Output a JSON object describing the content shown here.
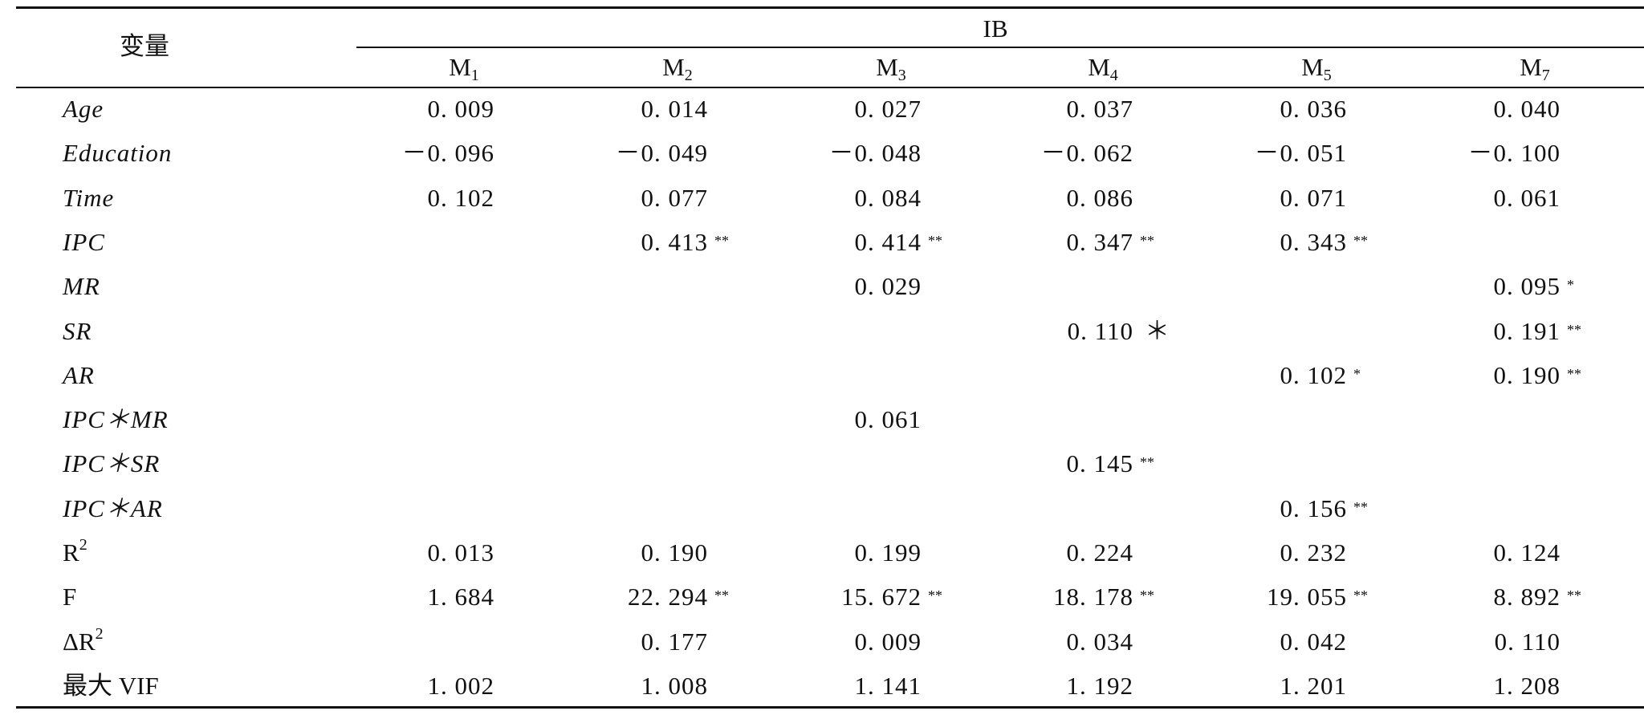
{
  "table": {
    "stub_header": "变量",
    "group_header": "IB",
    "columns": [
      {
        "base": "M",
        "sub": "1"
      },
      {
        "base": "M",
        "sub": "2"
      },
      {
        "base": "M",
        "sub": "3"
      },
      {
        "base": "M",
        "sub": "4"
      },
      {
        "base": "M",
        "sub": "5"
      },
      {
        "base": "M",
        "sub": "7"
      }
    ],
    "rows": [
      {
        "label": "Age",
        "italic": true,
        "cells": [
          {
            "v": "0. 009"
          },
          {
            "v": "0. 014"
          },
          {
            "v": "0. 027"
          },
          {
            "v": "0. 037"
          },
          {
            "v": "0. 036"
          },
          {
            "v": "0. 040"
          }
        ]
      },
      {
        "label": "Education",
        "italic": true,
        "cells": [
          {
            "v": "－0. 096"
          },
          {
            "v": "－0. 049"
          },
          {
            "v": "－0. 048"
          },
          {
            "v": "－0. 062"
          },
          {
            "v": "－0. 051"
          },
          {
            "v": "－0. 100"
          }
        ]
      },
      {
        "label": "Time",
        "italic": true,
        "cells": [
          {
            "v": "0. 102"
          },
          {
            "v": "0. 077"
          },
          {
            "v": "0. 084"
          },
          {
            "v": "0. 086"
          },
          {
            "v": "0. 071"
          },
          {
            "v": "0. 061"
          }
        ]
      },
      {
        "label": "IPC",
        "italic": true,
        "cells": [
          {
            "v": ""
          },
          {
            "v": "0. 413",
            "sig": "**"
          },
          {
            "v": "0. 414",
            "sig": "**"
          },
          {
            "v": "0. 347",
            "sig": "**"
          },
          {
            "v": "0. 343",
            "sig": "**"
          },
          {
            "v": ""
          }
        ]
      },
      {
        "label": "MR",
        "italic": true,
        "cells": [
          {
            "v": ""
          },
          {
            "v": ""
          },
          {
            "v": "0. 029"
          },
          {
            "v": ""
          },
          {
            "v": ""
          },
          {
            "v": "0. 095",
            "sig": "*"
          }
        ]
      },
      {
        "label": "SR",
        "italic": true,
        "cells": [
          {
            "v": ""
          },
          {
            "v": ""
          },
          {
            "v": ""
          },
          {
            "v": "0. 110",
            "sig_inline": "＊"
          },
          {
            "v": ""
          },
          {
            "v": "0. 191",
            "sig": "**"
          }
        ]
      },
      {
        "label": "AR",
        "italic": true,
        "cells": [
          {
            "v": ""
          },
          {
            "v": ""
          },
          {
            "v": ""
          },
          {
            "v": ""
          },
          {
            "v": "0. 102",
            "sig": "*"
          },
          {
            "v": "0. 190",
            "sig": "**"
          }
        ]
      },
      {
        "label": "IPC＊MR",
        "italic": true,
        "cells": [
          {
            "v": ""
          },
          {
            "v": ""
          },
          {
            "v": "0. 061"
          },
          {
            "v": ""
          },
          {
            "v": ""
          },
          {
            "v": ""
          }
        ]
      },
      {
        "label": "IPC＊SR",
        "italic": true,
        "cells": [
          {
            "v": ""
          },
          {
            "v": ""
          },
          {
            "v": ""
          },
          {
            "v": "0. 145",
            "sig": "**"
          },
          {
            "v": ""
          },
          {
            "v": ""
          }
        ]
      },
      {
        "label": "IPC＊AR",
        "italic": true,
        "cells": [
          {
            "v": ""
          },
          {
            "v": ""
          },
          {
            "v": ""
          },
          {
            "v": ""
          },
          {
            "v": "0. 156",
            "sig": "**"
          },
          {
            "v": ""
          }
        ]
      },
      {
        "label": "R",
        "label_sup": "2",
        "italic": false,
        "cells": [
          {
            "v": "0. 013"
          },
          {
            "v": "0. 190"
          },
          {
            "v": "0. 199"
          },
          {
            "v": "0. 224"
          },
          {
            "v": "0. 232"
          },
          {
            "v": "0. 124"
          }
        ]
      },
      {
        "label": "F",
        "italic": false,
        "cells": [
          {
            "v": "1. 684"
          },
          {
            "v": "22. 294",
            "sig": "**"
          },
          {
            "v": "15. 672",
            "sig": "**"
          },
          {
            "v": "18. 178",
            "sig": "**"
          },
          {
            "v": "19. 055",
            "sig": "**"
          },
          {
            "v": "8. 892",
            "sig": "**"
          }
        ]
      },
      {
        "label": "ΔR",
        "label_sup": "2",
        "italic": false,
        "cells": [
          {
            "v": ""
          },
          {
            "v": "0. 177"
          },
          {
            "v": "0. 009"
          },
          {
            "v": "0. 034"
          },
          {
            "v": "0. 042"
          },
          {
            "v": "0. 110"
          }
        ]
      },
      {
        "label": "最大 VIF",
        "italic": false,
        "cells": [
          {
            "v": "1. 002"
          },
          {
            "v": "1. 008"
          },
          {
            "v": "1. 141"
          },
          {
            "v": "1. 192"
          },
          {
            "v": "1. 201"
          },
          {
            "v": "1. 208"
          }
        ]
      }
    ]
  }
}
